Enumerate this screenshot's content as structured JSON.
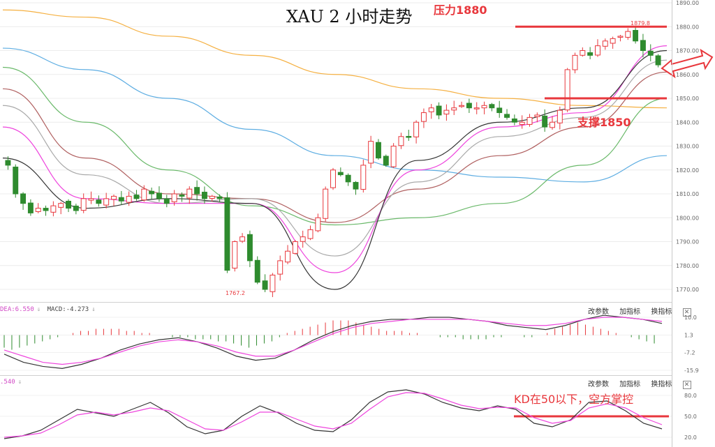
{
  "title": "XAU 2 小时走势",
  "annotations": {
    "resistance": "压力1880",
    "support": "支撑1850",
    "kd_note": "KD在50以下，空方掌控",
    "high_label": "1879.8",
    "low_label": "1767.2"
  },
  "indicator_panel": {
    "dea": "DEA:6.550",
    "macd": "MACD:-4.273",
    "tools": [
      "改参数",
      "加指标",
      "换指标"
    ],
    "close": "✕"
  },
  "kd_panel": {
    "label": ".540",
    "tools": [
      "改参数",
      "加指标",
      "换指标"
    ],
    "close": "✕"
  },
  "colors": {
    "up": "#e8373c",
    "down": "#2e8b2e",
    "ma_orange": "#f5b041",
    "ma_blue": "#5dade2",
    "ma_green": "#6ab96a",
    "ma_brown": "#b06060",
    "ma_gray": "#a9a9a9",
    "ma_pink": "#ee44dd",
    "ma_black": "#333333"
  },
  "chart_data": [
    {
      "type": "candlestick",
      "title": "XAU 2 小时走势",
      "ylim": [
        1765,
        1891
      ],
      "yticks": [
        "1890.00",
        "1880.00",
        "1870.00",
        "1860.00",
        "1850.00",
        "1840.00",
        "1830.00",
        "1820.00",
        "1810.00",
        "1800.00",
        "1790.00",
        "1780.00",
        "1770.00"
      ],
      "horizontal_lines": [
        {
          "label": "压力1880",
          "value": 1880
        },
        {
          "label": "支撑1850",
          "value": 1850
        }
      ],
      "close_path": [
        1822,
        1810,
        1806,
        1802,
        1804,
        1803,
        1805,
        1806,
        1804,
        1803,
        1808,
        1808,
        1806,
        1808,
        1809,
        1807,
        1809,
        1808,
        1812,
        1810,
        1808,
        1806,
        1810,
        1809,
        1812,
        1810,
        1808,
        1809,
        1808,
        1778,
        1790,
        1792,
        1782,
        1773,
        1770,
        1776,
        1782,
        1786,
        1790,
        1792,
        1795,
        1800,
        1812,
        1820,
        1818,
        1815,
        1812,
        1822,
        1832,
        1825,
        1822,
        1830,
        1834,
        1834,
        1840,
        1844,
        1846,
        1843,
        1845,
        1846,
        1847,
        1846,
        1846,
        1847,
        1846,
        1844,
        1842,
        1840,
        1840,
        1842,
        1843,
        1838,
        1840,
        1845,
        1862,
        1868,
        1870,
        1868,
        1872,
        1874,
        1875,
        1876,
        1878,
        1874,
        1870,
        1868,
        1864
      ],
      "moving_averages": [
        {
          "color_key": "ma_orange",
          "values": [
            1887,
            1884,
            1876,
            1868,
            1860,
            1854,
            1850,
            1847,
            1846
          ]
        },
        {
          "color_key": "ma_blue",
          "values": [
            1871,
            1862,
            1850,
            1837,
            1826,
            1820,
            1817,
            1815,
            1826
          ]
        },
        {
          "color_key": "ma_green",
          "values": [
            1863,
            1840,
            1820,
            1805,
            1797,
            1800,
            1806,
            1822,
            1850
          ]
        },
        {
          "color_key": "ma_brown",
          "values": [
            1854,
            1825,
            1810,
            1808,
            1798,
            1812,
            1826,
            1838,
            1861
          ]
        },
        {
          "color_key": "ma_gray",
          "values": [
            1847,
            1818,
            1806,
            1808,
            1784,
            1815,
            1834,
            1842,
            1866
          ]
        },
        {
          "color_key": "ma_pink",
          "values": [
            1838,
            1808,
            1806,
            1806,
            1777,
            1820,
            1838,
            1844,
            1872
          ]
        },
        {
          "color_key": "ma_black",
          "values": [
            1825,
            1804,
            1808,
            1806,
            1770,
            1824,
            1840,
            1846,
            1870
          ]
        }
      ]
    },
    {
      "type": "bar",
      "series_type": "macd",
      "yticks": [
        "10.0",
        "1.3",
        "-7.2",
        "-15.9"
      ],
      "ylim": [
        -16,
        12
      ]
    },
    {
      "type": "line",
      "series_type": "kd",
      "yticks": [
        "80.0",
        "50.0",
        "20.0"
      ],
      "ylim": [
        15,
        95
      ],
      "horizontal_lines": [
        {
          "value": 50
        }
      ]
    }
  ]
}
